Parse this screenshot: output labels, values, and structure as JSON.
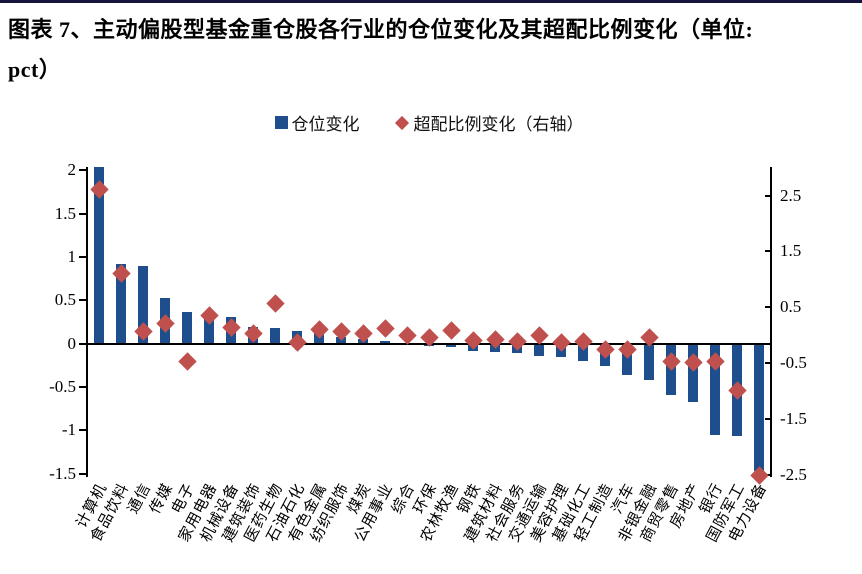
{
  "title": {
    "line1": "图表 7、主动偏股型基金重仓股各行业的仓位变化及其超配比例变化（单位:",
    "line2": "pct）"
  },
  "legend": {
    "items": [
      {
        "label": "仓位变化",
        "marker": "square",
        "color": "#1F4E8C"
      },
      {
        "label": "超配比例变化（右轴）",
        "marker": "diamond",
        "color": "#C0504D"
      }
    ],
    "position": "top-center"
  },
  "colors": {
    "bar": "#1F4E8C",
    "diamond": "#C0504D",
    "axis": "#000000",
    "top_rule": "#14143C"
  },
  "chart_data": {
    "type": "bar",
    "subtype": "dual-axis bar + diamond scatter",
    "grid": false,
    "categories": [
      "计算机",
      "食品饮料",
      "通信",
      "传媒",
      "电子",
      "家用电器",
      "机械设备",
      "建筑装饰",
      "医药生物",
      "石油石化",
      "有色金属",
      "纺织服饰",
      "煤炭",
      "公用事业",
      "综合",
      "环保",
      "农林牧渔",
      "钢铁",
      "建筑材料",
      "社会服务",
      "交通运输",
      "美容护理",
      "基础化工",
      "轻工制造",
      "汽车",
      "非银金融",
      "商贸零售",
      "房地产",
      "银行",
      "国防军工",
      "电力设备"
    ],
    "series": [
      {
        "name": "仓位变化",
        "type": "bar",
        "axis": "left",
        "color": "#1F4E8C",
        "values": [
          2.04,
          0.92,
          0.9,
          0.53,
          0.37,
          0.34,
          0.31,
          0.19,
          0.18,
          0.15,
          0.13,
          0.08,
          0.05,
          0.03,
          0.01,
          -0.02,
          -0.04,
          -0.09,
          -0.1,
          -0.11,
          -0.14,
          -0.15,
          -0.2,
          -0.26,
          -0.36,
          -0.42,
          -0.59,
          -0.67,
          -1.05,
          -1.07,
          -1.47
        ]
      },
      {
        "name": "超配比例变化（右轴）",
        "type": "scatter-diamond",
        "axis": "right",
        "color": "#C0504D",
        "values": [
          2.6,
          1.1,
          0.07,
          0.22,
          -0.46,
          0.35,
          0.15,
          0.04,
          0.57,
          -0.12,
          0.11,
          0.07,
          0.04,
          0.13,
          -0.01,
          -0.03,
          0.09,
          -0.09,
          -0.08,
          -0.11,
          -0.01,
          -0.13,
          -0.11,
          -0.26,
          -0.26,
          -0.04,
          -0.47,
          -0.49,
          -0.47,
          -0.99,
          -2.51
        ]
      }
    ],
    "left_axis": {
      "max": 2.04,
      "min": -1.54,
      "ticks": [
        2,
        1.5,
        1,
        0.5,
        0,
        -0.5,
        -1,
        -1.5
      ]
    },
    "right_axis": {
      "max": 3.01,
      "min": -2.53,
      "ticks": [
        2.5,
        1.5,
        0.5,
        -0.5,
        -1.5,
        -2.5
      ]
    }
  }
}
